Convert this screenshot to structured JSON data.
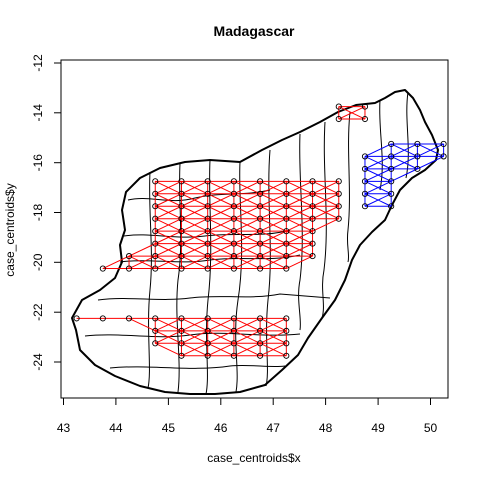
{
  "chart_data": {
    "type": "scatter",
    "title": "Madagascar",
    "xlabel": "case_centroids$x",
    "ylabel": "case_centroids$y",
    "xlim": [
      43.0,
      50.5
    ],
    "ylim": [
      -25.8,
      -11.7
    ],
    "x_ticks": [
      "43",
      "44",
      "45",
      "46",
      "47",
      "48",
      "49",
      "50"
    ],
    "y_ticks": [
      "-24",
      "-22",
      "-20",
      "-18",
      "-16",
      "-14",
      "-12"
    ],
    "grid": false,
    "legend": "none",
    "series": [
      {
        "color": "#ff0000",
        "x": [
          44.75,
          45.25,
          45.75,
          46.25,
          46.75,
          47.25,
          47.75,
          48.25,
          44.75,
          45.25,
          45.75,
          46.25,
          46.75,
          47.25,
          47.75,
          48.25,
          44.75,
          45.25,
          45.75,
          46.25,
          46.75,
          47.25,
          47.75,
          48.25,
          44.75,
          45.25,
          45.75,
          46.25,
          46.75,
          47.25,
          47.75,
          48.25,
          44.75,
          45.25,
          45.75,
          46.25,
          46.75,
          47.25,
          47.75,
          44.75,
          45.25,
          45.75,
          46.25,
          46.75,
          47.25,
          47.75,
          44.25,
          44.75,
          45.25,
          45.75,
          46.25,
          46.75,
          47.25,
          47.75,
          43.75,
          44.25,
          44.75,
          45.25,
          45.75,
          46.25,
          46.75,
          47.25,
          43.25,
          43.75,
          44.25,
          44.75,
          45.25,
          45.75,
          46.25,
          46.75,
          47.25,
          44.75,
          45.25,
          45.75,
          46.25,
          46.75,
          47.25,
          44.75,
          45.25,
          45.75,
          46.25,
          46.75,
          47.25,
          45.25,
          45.75,
          46.25,
          46.75,
          47.25,
          48.25,
          48.75,
          48.25,
          48.75
        ],
        "y": [
          -16.75,
          -16.75,
          -16.75,
          -16.75,
          -16.75,
          -16.75,
          -16.75,
          -16.75,
          -17.25,
          -17.25,
          -17.25,
          -17.25,
          -17.25,
          -17.25,
          -17.25,
          -17.25,
          -17.75,
          -17.75,
          -17.75,
          -17.75,
          -17.75,
          -17.75,
          -17.75,
          -17.75,
          -18.25,
          -18.25,
          -18.25,
          -18.25,
          -18.25,
          -18.25,
          -18.25,
          -18.25,
          -18.75,
          -18.75,
          -18.75,
          -18.75,
          -18.75,
          -18.75,
          -18.75,
          -19.25,
          -19.25,
          -19.25,
          -19.25,
          -19.25,
          -19.25,
          -19.25,
          -19.75,
          -19.75,
          -19.75,
          -19.75,
          -19.75,
          -19.75,
          -19.75,
          -19.75,
          -20.25,
          -20.25,
          -20.25,
          -20.25,
          -20.25,
          -20.25,
          -20.25,
          -20.25,
          -22.25,
          -22.25,
          -22.25,
          -22.25,
          -22.25,
          -22.25,
          -22.25,
          -22.25,
          -22.25,
          -22.75,
          -22.75,
          -22.75,
          -22.75,
          -22.75,
          -22.75,
          -23.25,
          -23.25,
          -23.25,
          -23.25,
          -23.25,
          -23.25,
          -23.75,
          -23.75,
          -23.75,
          -23.75,
          -23.75,
          -13.75,
          -13.75,
          -14.25,
          -14.25
        ]
      },
      {
        "color": "#0000ff",
        "x": [
          49.25,
          49.75,
          50.25,
          48.75,
          49.25,
          49.75,
          50.25,
          48.75,
          49.25,
          49.75,
          48.75,
          49.25,
          48.75,
          49.25,
          48.75,
          49.25
        ],
        "y": [
          -15.25,
          -15.25,
          -15.25,
          -15.75,
          -15.75,
          -15.75,
          -15.75,
          -16.25,
          -16.25,
          -16.25,
          -16.75,
          -16.75,
          -17.25,
          -17.25,
          -17.75,
          -17.75
        ]
      }
    ]
  }
}
